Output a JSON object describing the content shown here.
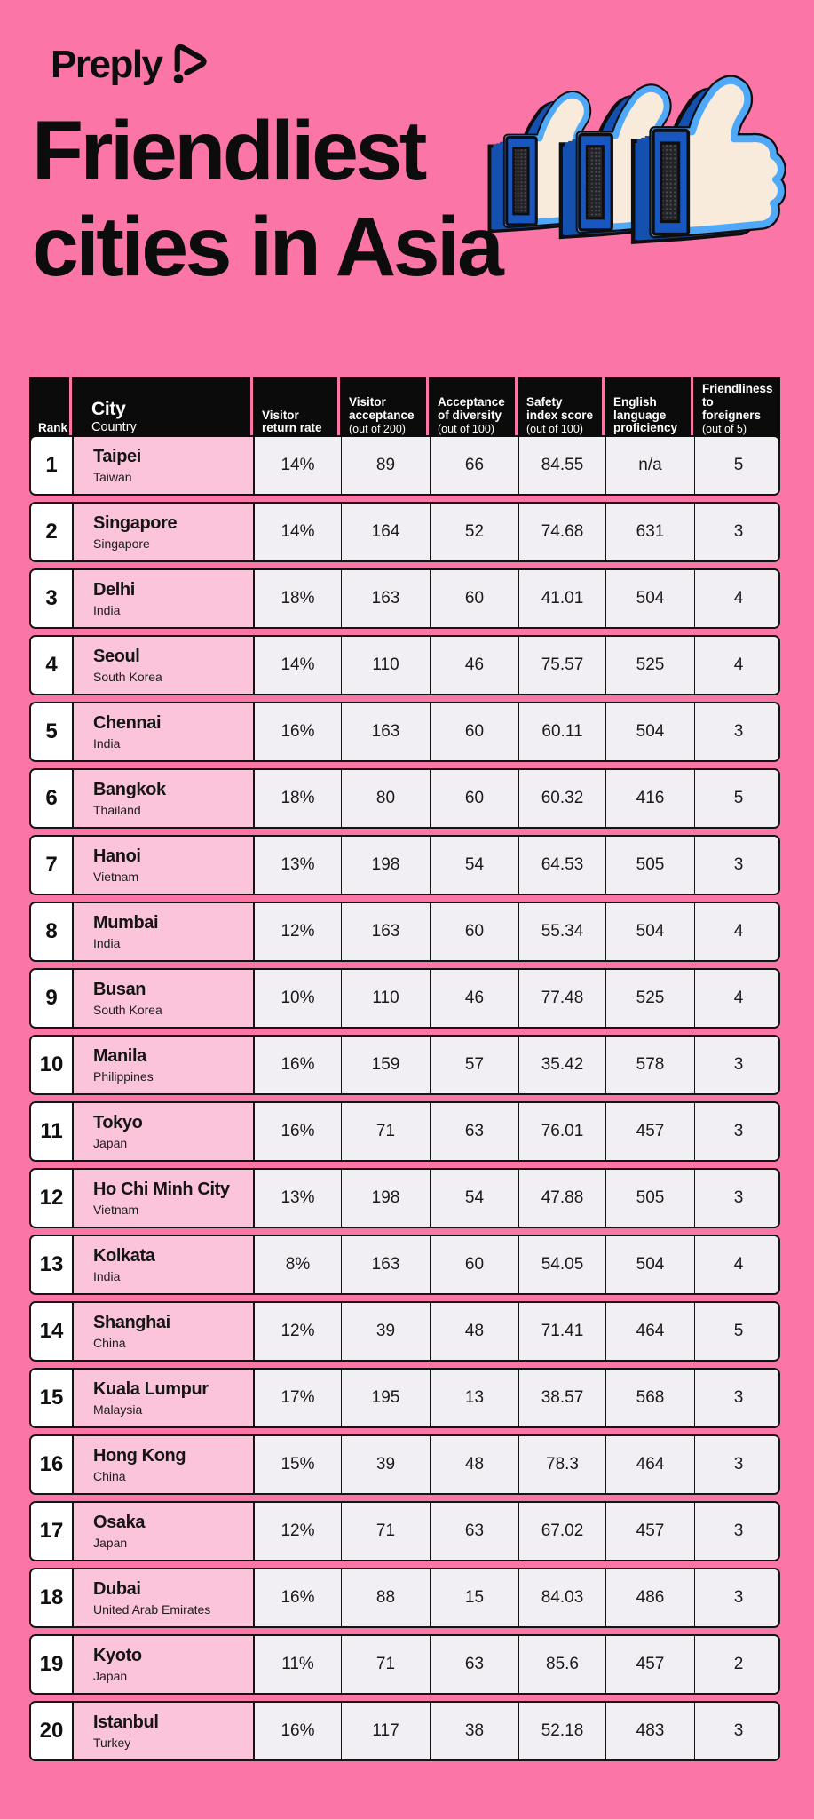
{
  "brand": {
    "name": "Preply"
  },
  "title": {
    "line1": "Friendliest",
    "line2": "cities in Asia"
  },
  "icons": [
    "preply-bubble-icon",
    "thumbs-up-icon-small",
    "thumbs-up-icon-medium",
    "thumbs-up-icon-large"
  ],
  "colors": {
    "background_pink": "#fb76a7",
    "city_cell_pink": "#fbc4da",
    "value_cell_gray": "#f1eff3",
    "header_black": "#0b0b0c",
    "rank_cell_white": "#ffffff",
    "thumb_light_blue": "#4fa9f8",
    "thumb_dark_blue": "#1450af",
    "thumb_cream": "#f8ebdb"
  },
  "chart_data": {
    "type": "table",
    "title": "Friendliest cities in Asia",
    "columns": [
      {
        "label": "Rank"
      },
      {
        "label": "City",
        "sub": "Country"
      },
      {
        "label": "Visitor return rate"
      },
      {
        "label": "Visitor acceptance",
        "sub": "(out of 200)"
      },
      {
        "label": "Acceptance of diversity",
        "sub": "(out of 100)"
      },
      {
        "label": "Safety index score",
        "sub": "(out of 100)"
      },
      {
        "label": "English language proficiency"
      },
      {
        "label": "Friendliness to foreigners",
        "sub": "(out of 5)"
      }
    ],
    "rows": [
      {
        "rank": "1",
        "city": "Taipei",
        "country": "Taiwan",
        "values": [
          "14%",
          "89",
          "66",
          "84.55",
          "n/a",
          "5"
        ]
      },
      {
        "rank": "2",
        "city": "Singapore",
        "country": "Singapore",
        "values": [
          "14%",
          "164",
          "52",
          "74.68",
          "631",
          "3"
        ]
      },
      {
        "rank": "3",
        "city": "Delhi",
        "country": "India",
        "values": [
          "18%",
          "163",
          "60",
          "41.01",
          "504",
          "4"
        ]
      },
      {
        "rank": "4",
        "city": "Seoul",
        "country": "South Korea",
        "values": [
          "14%",
          "110",
          "46",
          "75.57",
          "525",
          "4"
        ]
      },
      {
        "rank": "5",
        "city": "Chennai",
        "country": "India",
        "values": [
          "16%",
          "163",
          "60",
          "60.11",
          "504",
          "3"
        ]
      },
      {
        "rank": "6",
        "city": "Bangkok",
        "country": "Thailand",
        "values": [
          "18%",
          "80",
          "60",
          "60.32",
          "416",
          "5"
        ]
      },
      {
        "rank": "7",
        "city": "Hanoi",
        "country": "Vietnam",
        "values": [
          "13%",
          "198",
          "54",
          "64.53",
          "505",
          "3"
        ]
      },
      {
        "rank": "8",
        "city": "Mumbai",
        "country": "India",
        "values": [
          "12%",
          "163",
          "60",
          "55.34",
          "504",
          "4"
        ]
      },
      {
        "rank": "9",
        "city": "Busan",
        "country": "South Korea",
        "values": [
          "10%",
          "110",
          "46",
          "77.48",
          "525",
          "4"
        ]
      },
      {
        "rank": "10",
        "city": "Manila",
        "country": "Philippines",
        "values": [
          "16%",
          "159",
          "57",
          "35.42",
          "578",
          "3"
        ]
      },
      {
        "rank": "11",
        "city": "Tokyo",
        "country": "Japan",
        "values": [
          "16%",
          "71",
          "63",
          "76.01",
          "457",
          "3"
        ]
      },
      {
        "rank": "12",
        "city": "Ho Chi Minh City",
        "country": "Vietnam",
        "values": [
          "13%",
          "198",
          "54",
          "47.88",
          "505",
          "3"
        ]
      },
      {
        "rank": "13",
        "city": "Kolkata",
        "country": "India",
        "values": [
          "8%",
          "163",
          "60",
          "54.05",
          "504",
          "4"
        ]
      },
      {
        "rank": "14",
        "city": "Shanghai",
        "country": "China",
        "values": [
          "12%",
          "39",
          "48",
          "71.41",
          "464",
          "5"
        ]
      },
      {
        "rank": "15",
        "city": "Kuala Lumpur",
        "country": "Malaysia",
        "values": [
          "17%",
          "195",
          "13",
          "38.57",
          "568",
          "3"
        ]
      },
      {
        "rank": "16",
        "city": "Hong Kong",
        "country": "China",
        "values": [
          "15%",
          "39",
          "48",
          "78.3",
          "464",
          "3"
        ]
      },
      {
        "rank": "17",
        "city": "Osaka",
        "country": "Japan",
        "values": [
          "12%",
          "71",
          "63",
          "67.02",
          "457",
          "3"
        ]
      },
      {
        "rank": "18",
        "city": "Dubai",
        "country": "United Arab Emirates",
        "values": [
          "16%",
          "88",
          "15",
          "84.03",
          "486",
          "3"
        ]
      },
      {
        "rank": "19",
        "city": "Kyoto",
        "country": "Japan",
        "values": [
          "11%",
          "71",
          "63",
          "85.6",
          "457",
          "2"
        ]
      },
      {
        "rank": "20",
        "city": "Istanbul",
        "country": "Turkey",
        "values": [
          "16%",
          "117",
          "38",
          "52.18",
          "483",
          "3"
        ]
      }
    ]
  }
}
